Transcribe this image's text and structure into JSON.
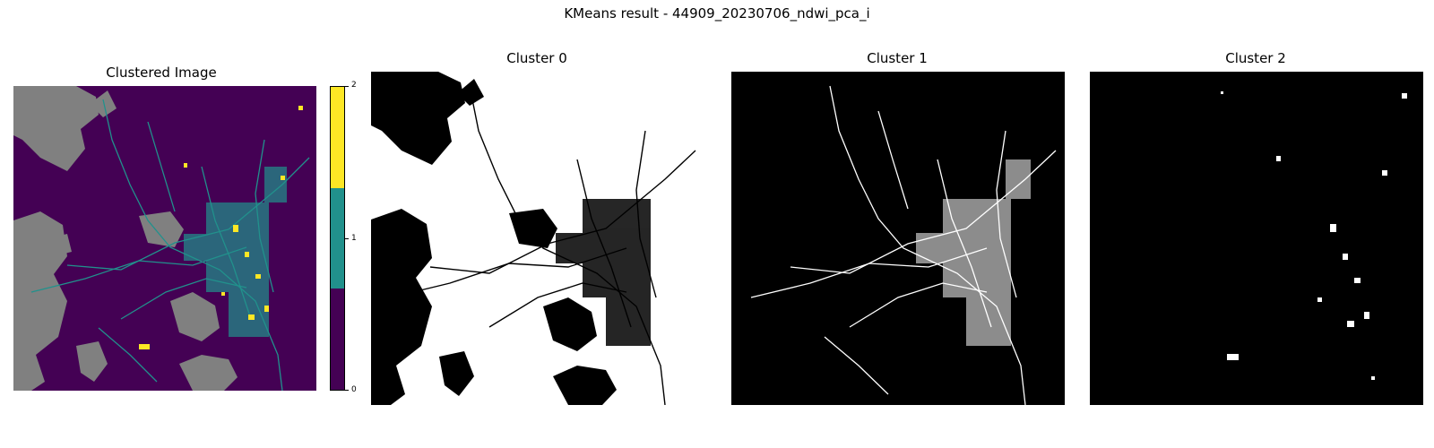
{
  "figure": {
    "suptitle": "KMeans result - 44909_20230706_ndwi_pca_i"
  },
  "panels": [
    {
      "title": "Clustered Image"
    },
    {
      "title": "Cluster 0"
    },
    {
      "title": "Cluster 1"
    },
    {
      "title": "Cluster 2"
    }
  ],
  "colorbar": {
    "ticks": [
      "0",
      "1",
      "2"
    ],
    "colors": [
      "#440154",
      "#21918c",
      "#fde725"
    ]
  },
  "colors": {
    "nodata": "#808080",
    "mask_on": "#ffffff",
    "mask_off": "#000000"
  },
  "chart_data": {
    "type": "heatmap",
    "title": "KMeans result - 44909_20230706_ndwi_pca_i",
    "panels": [
      "Clustered Image",
      "Cluster 0",
      "Cluster 1",
      "Cluster 2"
    ],
    "clusters": [
      0,
      1,
      2
    ],
    "colormap": "viridis",
    "colorbar_range": [
      0,
      2
    ],
    "colorbar_ticks": [
      0,
      1,
      2
    ]
  }
}
